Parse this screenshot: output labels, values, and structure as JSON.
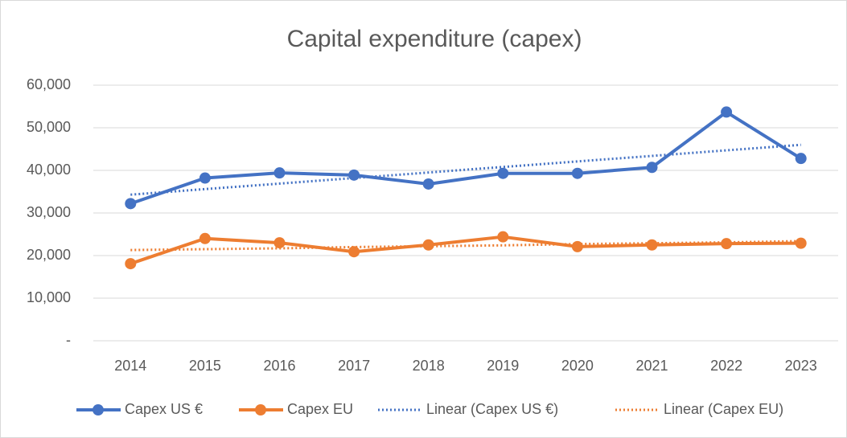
{
  "chart_data": {
    "type": "line",
    "title": "Capital expenditure (capex)",
    "categories": [
      "2014",
      "2015",
      "2016",
      "2017",
      "2018",
      "2019",
      "2020",
      "2021",
      "2022",
      "2023"
    ],
    "series": [
      {
        "name": "Capex US €",
        "color": "#4472c4",
        "style": "solid",
        "marker": true,
        "values": [
          32200,
          38200,
          39400,
          38900,
          36800,
          39300,
          39300,
          40700,
          53700,
          42800
        ]
      },
      {
        "name": "Capex EU",
        "color": "#ed7d31",
        "style": "solid",
        "marker": true,
        "values": [
          18100,
          24000,
          23000,
          20900,
          22500,
          24400,
          22100,
          22500,
          22800,
          22900
        ]
      },
      {
        "name": "Linear (Capex US €)",
        "color": "#4472c4",
        "style": "dotted",
        "marker": false,
        "values": [
          34300,
          35600,
          36900,
          38200,
          39500,
          40800,
          42100,
          43400,
          44700,
          46000
        ]
      },
      {
        "name": "Linear (Capex EU)",
        "color": "#ed7d31",
        "style": "dotted",
        "marker": false,
        "values": [
          21300,
          21500,
          21700,
          22000,
          22200,
          22400,
          22700,
          22900,
          23100,
          23400
        ]
      }
    ],
    "ylim": [
      0,
      60000
    ],
    "yticks": [
      {
        "value": 0,
        "label": "-"
      },
      {
        "value": 10000,
        "label": "10,000"
      },
      {
        "value": 20000,
        "label": "20,000"
      },
      {
        "value": 30000,
        "label": "30,000"
      },
      {
        "value": 40000,
        "label": "40,000"
      },
      {
        "value": 50000,
        "label": "50,000"
      },
      {
        "value": 60000,
        "label": "60,000"
      }
    ],
    "grid": true,
    "legend": "bottom"
  }
}
